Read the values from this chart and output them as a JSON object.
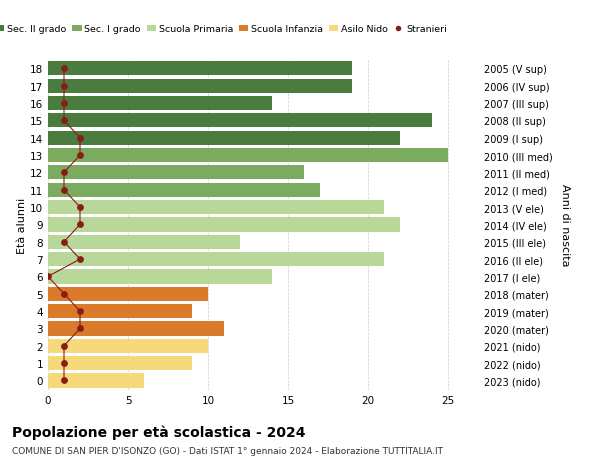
{
  "ages": [
    18,
    17,
    16,
    15,
    14,
    13,
    12,
    11,
    10,
    9,
    8,
    7,
    6,
    5,
    4,
    3,
    2,
    1,
    0
  ],
  "years": [
    "2005 (V sup)",
    "2006 (IV sup)",
    "2007 (III sup)",
    "2008 (II sup)",
    "2009 (I sup)",
    "2010 (III med)",
    "2011 (II med)",
    "2012 (I med)",
    "2013 (V ele)",
    "2014 (IV ele)",
    "2015 (III ele)",
    "2016 (II ele)",
    "2017 (I ele)",
    "2018 (mater)",
    "2019 (mater)",
    "2020 (mater)",
    "2021 (nido)",
    "2022 (nido)",
    "2023 (nido)"
  ],
  "bar_values": [
    19,
    19,
    14,
    24,
    22,
    25,
    16,
    17,
    21,
    22,
    12,
    21,
    14,
    10,
    9,
    11,
    10,
    9,
    6
  ],
  "bar_colors": [
    "#4a7c3f",
    "#4a7c3f",
    "#4a7c3f",
    "#4a7c3f",
    "#4a7c3f",
    "#7aab5e",
    "#7aab5e",
    "#7aab5e",
    "#b8d89a",
    "#b8d89a",
    "#b8d89a",
    "#b8d89a",
    "#b8d89a",
    "#d97b2b",
    "#d97b2b",
    "#d97b2b",
    "#f5d97a",
    "#f5d97a",
    "#f5d97a"
  ],
  "stranieri_values": [
    1,
    1,
    1,
    1,
    2,
    2,
    1,
    1,
    2,
    2,
    1,
    2,
    0,
    1,
    2,
    2,
    1,
    1,
    1
  ],
  "stranieri_color": "#8b1a1a",
  "title": "Popolazione per età scolastica - 2024",
  "subtitle": "COMUNE DI SAN PIER D'ISONZO (GO) - Dati ISTAT 1° gennaio 2024 - Elaborazione TUTTITALIA.IT",
  "ylabel_left": "Età alunni",
  "ylabel_right": "Anni di nascita",
  "xlim": [
    0,
    27
  ],
  "xticks": [
    0,
    5,
    10,
    15,
    20,
    25
  ],
  "legend_labels": [
    "Sec. II grado",
    "Sec. I grado",
    "Scuola Primaria",
    "Scuola Infanzia",
    "Asilo Nido",
    "Stranieri"
  ],
  "legend_colors": [
    "#4a7c3f",
    "#7aab5e",
    "#b8d89a",
    "#d97b2b",
    "#f5d97a",
    "#8b1a1a"
  ],
  "bg_color": "#ffffff",
  "grid_color": "#cccccc",
  "bar_height": 0.82
}
